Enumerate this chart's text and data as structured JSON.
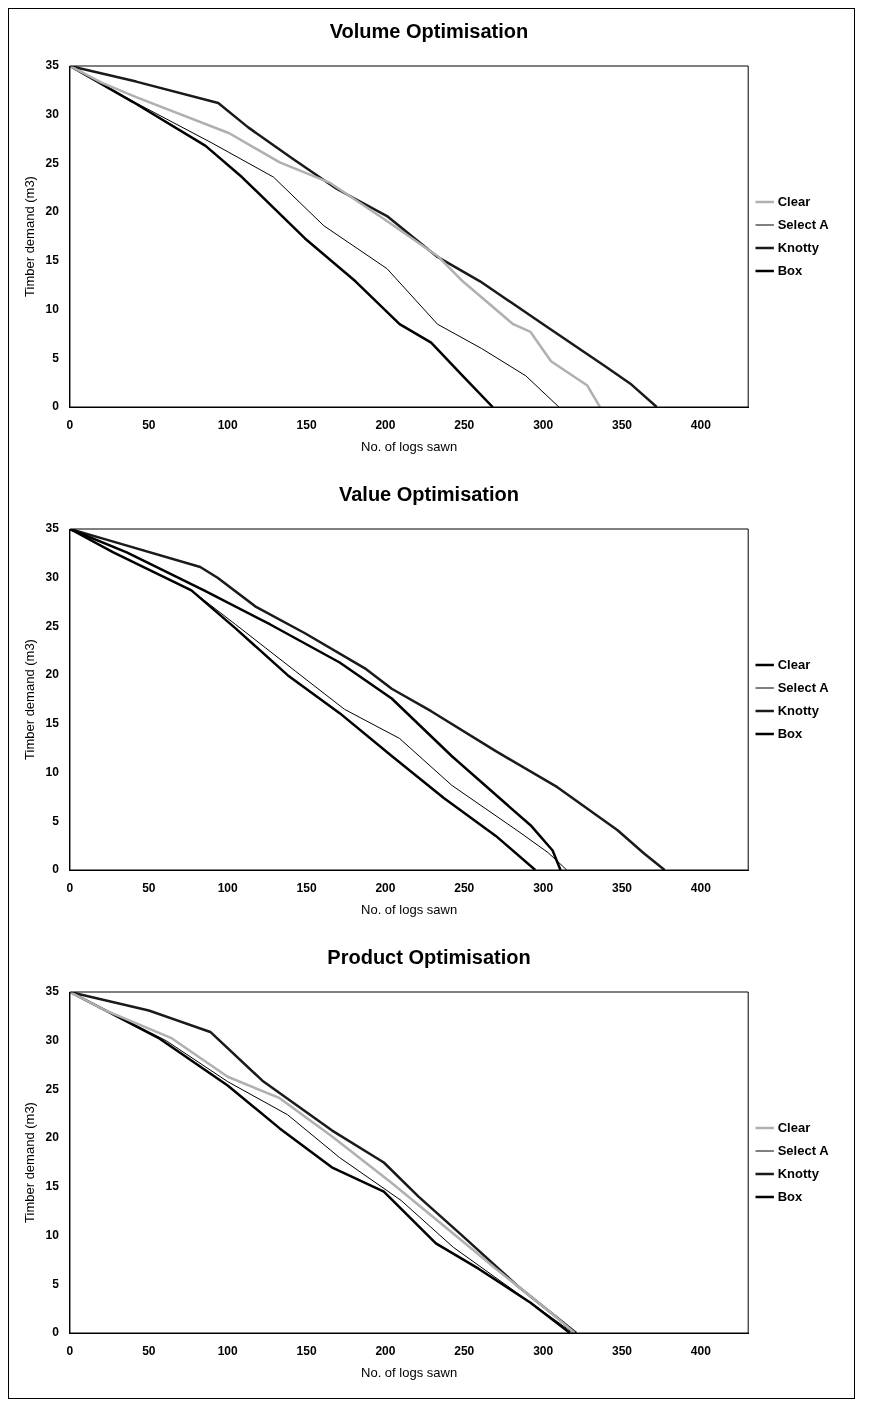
{
  "chart_data": [
    {
      "type": "line",
      "title": "Volume Optimisation",
      "xlabel": "No. of logs sawn",
      "ylabel": "Timber demand (m3)",
      "xlim": [
        0,
        430
      ],
      "xticks": [
        0,
        50,
        100,
        150,
        200,
        250,
        300,
        350,
        400
      ],
      "ylim": [
        0,
        35
      ],
      "yticks": [
        0,
        5,
        10,
        15,
        20,
        25,
        30,
        35
      ],
      "grid": false,
      "legend": "right",
      "marker": "none",
      "line_style": "solid",
      "series": [
        {
          "name": "Clear",
          "color": "#b0b0b0",
          "x": [
            0,
            20,
            42,
            101,
            133,
            165,
            200,
            233,
            249,
            281,
            292,
            305,
            328,
            336
          ],
          "values": [
            35,
            33.3,
            31.8,
            28.1,
            25.1,
            23,
            19.2,
            15.5,
            12.9,
            8.5,
            7.7,
            4.7,
            2.2,
            0
          ]
        },
        {
          "name": "Select A",
          "color": "#000000",
          "x": [
            0,
            42,
            90,
            129,
            161,
            201,
            233,
            261,
            289,
            310
          ],
          "values": [
            35,
            31.2,
            27.1,
            23.6,
            18.6,
            14.2,
            8.5,
            6,
            3.2,
            0
          ]
        },
        {
          "name": "Knotty",
          "color": "#1a1a1a",
          "x": [
            0,
            42,
            94,
            113,
            141,
            169,
            201,
            233,
            260,
            300,
            340,
            356,
            372
          ],
          "values": [
            35,
            33.4,
            31.2,
            28.7,
            25.5,
            22.4,
            19.6,
            15.4,
            12.9,
            8.5,
            4.1,
            2.3,
            0
          ]
        },
        {
          "name": "Box",
          "color": "#000000",
          "x": [
            0,
            40,
            86,
            109,
            149,
            181,
            209,
            229,
            249,
            268
          ],
          "values": [
            35,
            31.3,
            26.8,
            23.6,
            17.3,
            12.9,
            8.5,
            6.6,
            3.2,
            0
          ]
        }
      ]
    },
    {
      "type": "line",
      "title": "Value Optimisation",
      "xlabel": "No. of logs sawn",
      "ylabel": "Timber demand (m3)",
      "xlim": [
        0,
        430
      ],
      "xticks": [
        0,
        50,
        100,
        150,
        200,
        250,
        300,
        350,
        400
      ],
      "ylim": [
        0,
        35
      ],
      "yticks": [
        0,
        5,
        10,
        15,
        20,
        25,
        30,
        35
      ],
      "grid": false,
      "legend": "right",
      "marker": "none",
      "line_style": "solid",
      "series": [
        {
          "name": "Clear",
          "color": "#000000",
          "x": [
            0,
            36,
            85,
            127,
            171,
            204,
            242,
            275,
            292,
            306,
            311
          ],
          "values": [
            35,
            32.6,
            28.7,
            25.2,
            21.3,
            17.6,
            11.7,
            7,
            4.6,
            2,
            0
          ]
        },
        {
          "name": "Select A",
          "color": "#000000",
          "x": [
            0,
            27.5,
            77,
            105,
            143,
            174,
            209,
            242,
            284,
            303,
            315
          ],
          "values": [
            35,
            32.6,
            28.7,
            25.2,
            20.4,
            16.5,
            13.5,
            8.7,
            4,
            1.8,
            0
          ]
        },
        {
          "name": "Knotty",
          "color": "#1a1a1a",
          "x": [
            0,
            27.5,
            82.6,
            93.6,
            118,
            149,
            187,
            204,
            229,
            270,
            309,
            347,
            364,
            377
          ],
          "values": [
            35,
            33.7,
            31.1,
            30,
            27,
            24.3,
            20.7,
            18.6,
            16.3,
            12.2,
            8.5,
            4.1,
            1.7,
            0
          ]
        },
        {
          "name": "Box",
          "color": "#000000",
          "x": [
            0,
            27.5,
            77,
            105,
            138,
            171,
            204,
            237,
            270,
            295
          ],
          "values": [
            35,
            32.6,
            28.7,
            24.8,
            20,
            16.1,
            11.7,
            7.4,
            3.5,
            0
          ]
        }
      ]
    },
    {
      "type": "line",
      "title": "Product Optimisation",
      "xlabel": "No. of logs sawn",
      "ylabel": "Timber demand (m3)",
      "xlim": [
        0,
        430
      ],
      "xticks": [
        0,
        50,
        100,
        150,
        200,
        250,
        300,
        350,
        400
      ],
      "ylim": [
        0,
        35
      ],
      "yticks": [
        0,
        5,
        10,
        15,
        20,
        25,
        30,
        35
      ],
      "grid": false,
      "legend": "right",
      "marker": "none",
      "line_style": "solid",
      "series": [
        {
          "name": "Clear",
          "color": "#b0b0b0",
          "x": [
            0,
            22.6,
            64,
            100,
            133,
            166,
            204,
            237,
            270,
            304,
            320
          ],
          "values": [
            35,
            33.1,
            30.3,
            26.3,
            24.1,
            20.2,
            15.4,
            11,
            6.6,
            2.2,
            0
          ]
        },
        {
          "name": "Select A",
          "color": "#000000",
          "x": [
            0,
            61,
            100,
            138,
            171,
            210,
            243,
            281,
            319
          ],
          "values": [
            35,
            30,
            25.8,
            22.4,
            18,
            13.6,
            8.8,
            4.4,
            0
          ]
        },
        {
          "name": "Knotty",
          "color": "#1a1a1a",
          "x": [
            0,
            50,
            89,
            122,
            166,
            199,
            221,
            248,
            284,
            321
          ],
          "values": [
            35,
            33.1,
            30.9,
            25.9,
            20.8,
            17.5,
            14,
            10.1,
            4.8,
            0
          ]
        },
        {
          "name": "Box",
          "color": "#000000",
          "x": [
            0,
            56,
            100,
            133,
            166,
            199,
            232,
            259,
            292,
            317
          ],
          "values": [
            35,
            30.3,
            25.4,
            21,
            17,
            14.5,
            9.2,
            6.6,
            3.1,
            0
          ]
        }
      ]
    }
  ]
}
